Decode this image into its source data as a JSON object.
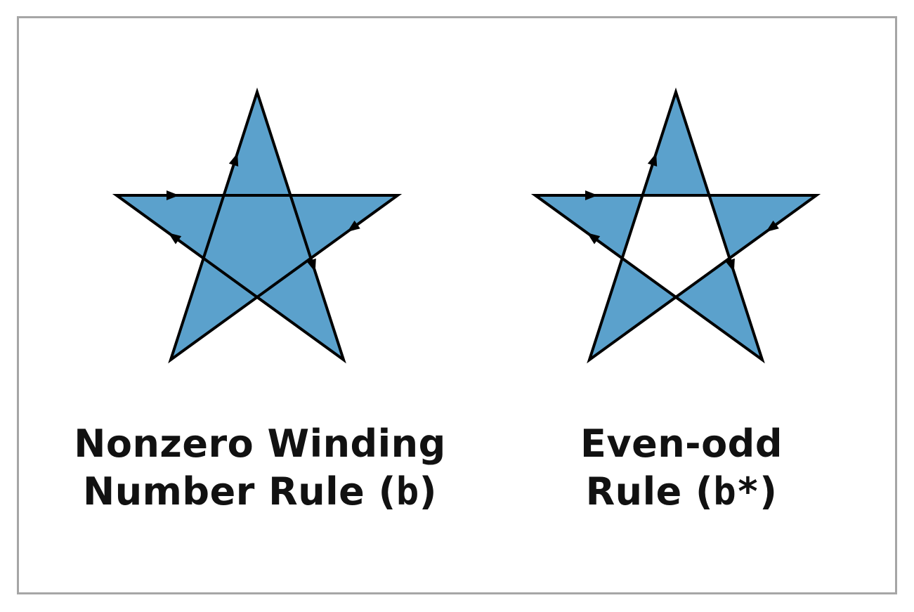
{
  "colors": {
    "star_fill": "#5ba1cc",
    "stroke": "#000000",
    "frame_border": "#a6a6a6",
    "text": "#111111"
  },
  "left": {
    "fill_rule": "nonzero",
    "caption_line1": "Nonzero Winding",
    "caption_line2_prefix": "Number Rule (",
    "caption_code": "b",
    "caption_line2_suffix": ")"
  },
  "right": {
    "fill_rule": "evenodd",
    "caption_line1": "Even-odd",
    "caption_line2_prefix": "Rule (",
    "caption_code": "b*",
    "caption_line2_suffix": ")"
  }
}
